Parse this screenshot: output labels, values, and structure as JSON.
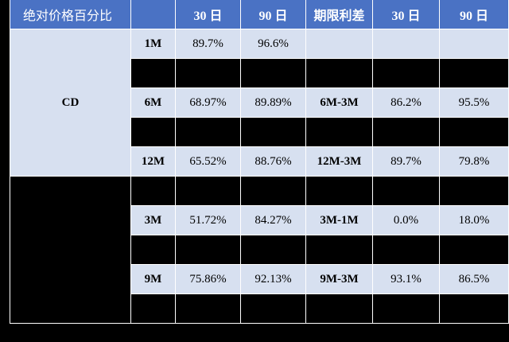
{
  "header": {
    "col1": "绝对价格百分比",
    "col2": "",
    "col3": "30 日",
    "col4": "90 日",
    "col5": "期限利差",
    "col6": "30 日",
    "col7": "90 日"
  },
  "groups": [
    {
      "name": "CD",
      "rows": [
        {
          "tenor": "1M",
          "abs30": "89.7%",
          "abs90": "96.6%",
          "spread": "",
          "sp30": "",
          "sp90": ""
        },
        {
          "tenor": "",
          "abs30": "",
          "abs90": "",
          "spread": "",
          "sp30": "",
          "sp90": ""
        },
        {
          "tenor": "6M",
          "abs30": "68.97%",
          "abs90": "89.89%",
          "spread": "6M-3M",
          "sp30": "86.2%",
          "sp90": "95.5%"
        },
        {
          "tenor": "",
          "abs30": "",
          "abs90": "",
          "spread": "",
          "sp30": "",
          "sp90": ""
        },
        {
          "tenor": "12M",
          "abs30": "65.52%",
          "abs90": "88.76%",
          "spread": "12M-3M",
          "sp30": "89.7%",
          "sp90": "79.8%"
        }
      ]
    },
    {
      "name": "",
      "rows": [
        {
          "tenor": "",
          "abs30": "",
          "abs90": "",
          "spread": "",
          "sp30": "",
          "sp90": ""
        },
        {
          "tenor": "3M",
          "abs30": "51.72%",
          "abs90": "84.27%",
          "spread": "3M-1M",
          "sp30": "0.0%",
          "sp90": "18.0%"
        },
        {
          "tenor": "",
          "abs30": "",
          "abs90": "",
          "spread": "",
          "sp30": "",
          "sp90": ""
        },
        {
          "tenor": "9M",
          "abs30": "75.86%",
          "abs90": "92.13%",
          "spread": "9M-3M",
          "sp30": "93.1%",
          "sp90": "86.5%"
        },
        {
          "tenor": "",
          "abs30": "",
          "abs90": "",
          "spread": "",
          "sp30": "",
          "sp90": ""
        }
      ]
    }
  ],
  "colors": {
    "header_bg": "#4a72c4",
    "light_cell": "#d7e0f0",
    "dark_cell": "#000000"
  }
}
